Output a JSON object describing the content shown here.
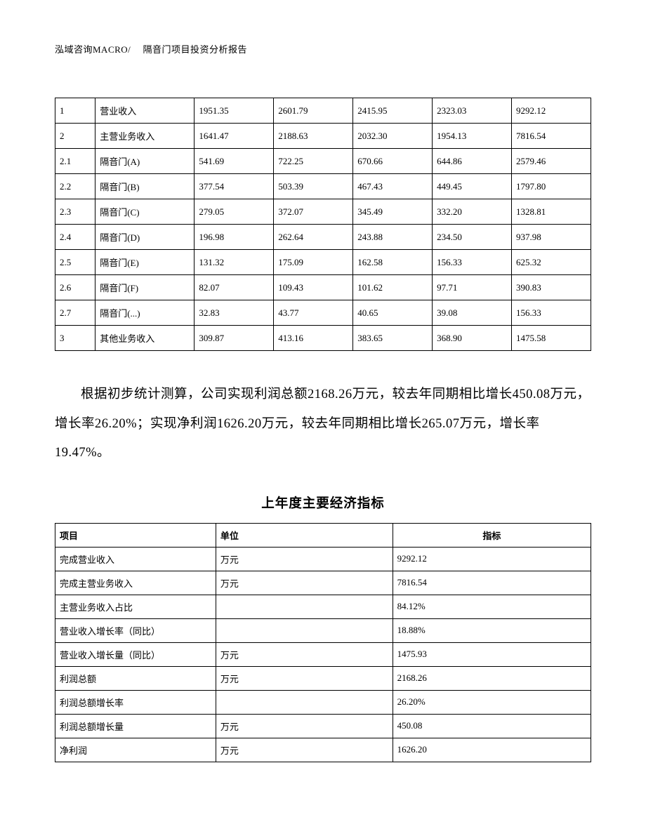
{
  "header": "泓域咨询MACRO/　 隔音门项目投资分析报告",
  "table1": {
    "col_widths": [
      "7.5%",
      "18.5%",
      "14.8%",
      "14.8%",
      "14.8%",
      "14.8%",
      "14.8%"
    ],
    "rows": [
      [
        "1",
        "营业收入",
        "1951.35",
        "2601.79",
        "2415.95",
        "2323.03",
        "9292.12"
      ],
      [
        "2",
        "主营业务收入",
        "1641.47",
        "2188.63",
        "2032.30",
        "1954.13",
        "7816.54"
      ],
      [
        "2.1",
        "隔音门(A)",
        "541.69",
        "722.25",
        "670.66",
        "644.86",
        "2579.46"
      ],
      [
        "2.2",
        "隔音门(B)",
        "377.54",
        "503.39",
        "467.43",
        "449.45",
        "1797.80"
      ],
      [
        "2.3",
        "隔音门(C)",
        "279.05",
        "372.07",
        "345.49",
        "332.20",
        "1328.81"
      ],
      [
        "2.4",
        "隔音门(D)",
        "196.98",
        "262.64",
        "243.88",
        "234.50",
        "937.98"
      ],
      [
        "2.5",
        "隔音门(E)",
        "131.32",
        "175.09",
        "162.58",
        "156.33",
        "625.32"
      ],
      [
        "2.6",
        "隔音门(F)",
        "82.07",
        "109.43",
        "101.62",
        "97.71",
        "390.83"
      ],
      [
        "2.7",
        "隔音门(...)",
        "32.83",
        "43.77",
        "40.65",
        "39.08",
        "156.33"
      ],
      [
        "3",
        "其他业务收入",
        "309.87",
        "413.16",
        "383.65",
        "368.90",
        "1475.58"
      ]
    ]
  },
  "paragraph": "根据初步统计测算，公司实现利润总额2168.26万元，较去年同期相比增长450.08万元，增长率26.20%；实现净利润1626.20万元，较去年同期相比增长265.07万元，增长率19.47%。",
  "section_title": "上年度主要经济指标",
  "table2": {
    "headers": [
      "项目",
      "单位",
      "指标"
    ],
    "rows": [
      [
        "完成营业收入",
        "万元",
        "9292.12"
      ],
      [
        "完成主营业务收入",
        "万元",
        "7816.54"
      ],
      [
        "主营业务收入占比",
        "",
        "84.12%"
      ],
      [
        "营业收入增长率（同比）",
        "",
        "18.88%"
      ],
      [
        "营业收入增长量（同比）",
        "万元",
        "1475.93"
      ],
      [
        "利润总额",
        "万元",
        "2168.26"
      ],
      [
        "利润总额增长率",
        "",
        "26.20%"
      ],
      [
        "利润总额增长量",
        "万元",
        "450.08"
      ],
      [
        "净利润",
        "万元",
        "1626.20"
      ]
    ]
  }
}
